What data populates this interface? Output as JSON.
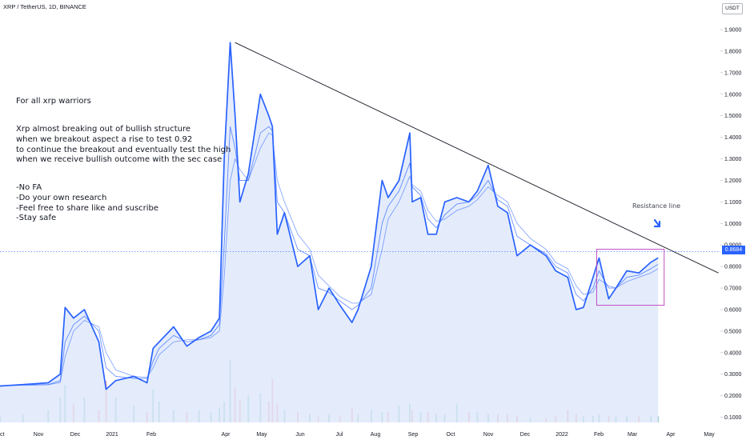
{
  "header": {
    "symbol": "XRP / TetherUS, 1D, BINANCE",
    "currency": "USDT"
  },
  "annotations": {
    "heading": "For all xrp warriors",
    "body": [
      "Xrp almost breaking out of bullish structure",
      "when we breakout aspect a rise to test 0.92",
      "to continue the breakout and eventually test the high",
      "when we receive bullish outcome with the sec case"
    ],
    "bullets": [
      "-No FA",
      "-Do your own research",
      "-Feel free to share like and suscribe",
      "-Stay safe"
    ],
    "resistance_label": "Resistance line"
  },
  "price_label": "0.8684",
  "colors": {
    "price_line": "#2962ff",
    "area_fill": "#dbe6fb",
    "trendline": "#131722",
    "box": "#c04bc2",
    "arrow": "#2962ff",
    "volume_up": "#9ed3c6",
    "volume_down": "#f7b3b3",
    "axis_text": "#131722"
  },
  "chart_data": {
    "type": "line",
    "title": "XRP / TetherUS, 1D, BINANCE",
    "y_tick_labels": [
      "1.9000",
      "1.8000",
      "1.7000",
      "1.6000",
      "1.5000",
      "1.4000",
      "1.3000",
      "1.2000",
      "1.1000",
      "1.0000",
      "0.9000",
      "0.8000",
      "0.7000",
      "0.6000",
      "0.5000",
      "0.4000",
      "0.3000",
      "0.2000",
      "0.1000"
    ],
    "x_tick_labels": [
      "Oct",
      "Nov",
      "Dec",
      "2021",
      "Feb",
      "Apr",
      "May",
      "Jun",
      "Jul",
      "Aug",
      "Sep",
      "Oct",
      "Nov",
      "Dec",
      "2022",
      "Feb",
      "Mar",
      "Apr",
      "May"
    ],
    "ylim": [
      0.06,
      1.98
    ],
    "x": [
      "2020-10-01",
      "2020-10-20",
      "2020-11-10",
      "2020-11-20",
      "2020-11-24",
      "2020-12-01",
      "2020-12-10",
      "2020-12-22",
      "2020-12-28",
      "2021-01-05",
      "2021-01-20",
      "2021-01-31",
      "2021-02-05",
      "2021-02-10",
      "2021-02-22",
      "2021-03-05",
      "2021-03-15",
      "2021-03-25",
      "2021-04-01",
      "2021-04-05",
      "2021-04-10",
      "2021-04-14",
      "2021-04-18",
      "2021-04-25",
      "2021-05-05",
      "2021-05-12",
      "2021-05-15",
      "2021-05-19",
      "2021-05-25",
      "2021-06-05",
      "2021-06-15",
      "2021-06-22",
      "2021-07-01",
      "2021-07-10",
      "2021-07-20",
      "2021-07-25",
      "2021-08-05",
      "2021-08-14",
      "2021-08-19",
      "2021-08-28",
      "2021-09-06",
      "2021-09-08",
      "2021-09-15",
      "2021-09-21",
      "2021-09-28",
      "2021-10-05",
      "2021-10-15",
      "2021-10-25",
      "2021-11-01",
      "2021-11-10",
      "2021-11-18",
      "2021-11-26",
      "2021-12-04",
      "2021-12-15",
      "2021-12-28",
      "2022-01-05",
      "2022-01-15",
      "2022-01-22",
      "2022-01-28",
      "2022-02-05",
      "2022-02-10",
      "2022-02-18",
      "2022-02-24",
      "2022-03-05",
      "2022-03-15",
      "2022-03-25",
      "2022-03-31"
    ],
    "series": [
      {
        "type": "line",
        "values": [
          0.245,
          0.252,
          0.26,
          0.3,
          0.61,
          0.56,
          0.6,
          0.45,
          0.23,
          0.27,
          0.29,
          0.26,
          0.42,
          0.45,
          0.52,
          0.43,
          0.47,
          0.5,
          0.56,
          1.3,
          1.84,
          1.5,
          1.1,
          1.23,
          1.6,
          1.5,
          1.45,
          0.95,
          1.05,
          0.8,
          0.85,
          0.6,
          0.7,
          0.62,
          0.54,
          0.6,
          0.8,
          1.2,
          1.12,
          1.2,
          1.42,
          1.1,
          1.12,
          0.95,
          0.95,
          1.1,
          1.12,
          1.1,
          1.15,
          1.27,
          1.08,
          1.05,
          0.85,
          0.9,
          0.85,
          0.78,
          0.75,
          0.6,
          0.61,
          0.75,
          0.84,
          0.65,
          0.7,
          0.78,
          0.77,
          0.82,
          0.84
        ]
      },
      {
        "type": "line",
        "values": [
          0.246,
          0.25,
          0.252,
          0.27,
          0.45,
          0.53,
          0.57,
          0.5,
          0.33,
          0.29,
          0.28,
          0.28,
          0.36,
          0.42,
          0.48,
          0.45,
          0.46,
          0.48,
          0.53,
          0.9,
          1.45,
          1.35,
          1.2,
          1.2,
          1.42,
          1.45,
          1.43,
          1.1,
          1.05,
          0.88,
          0.85,
          0.7,
          0.68,
          0.64,
          0.6,
          0.62,
          0.7,
          1.0,
          1.08,
          1.15,
          1.28,
          1.17,
          1.13,
          1.02,
          0.98,
          1.04,
          1.09,
          1.1,
          1.13,
          1.2,
          1.11,
          1.08,
          0.94,
          0.9,
          0.86,
          0.8,
          0.77,
          0.67,
          0.64,
          0.7,
          0.78,
          0.7,
          0.7,
          0.75,
          0.76,
          0.79,
          0.81
        ]
      },
      {
        "type": "line",
        "values": [
          0.246,
          0.249,
          0.251,
          0.262,
          0.38,
          0.5,
          0.55,
          0.52,
          0.4,
          0.32,
          0.29,
          0.285,
          0.33,
          0.39,
          0.45,
          0.46,
          0.46,
          0.47,
          0.5,
          0.75,
          1.2,
          1.3,
          1.25,
          1.2,
          1.35,
          1.42,
          1.41,
          1.2,
          1.1,
          0.95,
          0.88,
          0.76,
          0.71,
          0.66,
          0.63,
          0.63,
          0.67,
          0.88,
          1.02,
          1.1,
          1.22,
          1.18,
          1.15,
          1.06,
          1.01,
          1.02,
          1.06,
          1.08,
          1.11,
          1.17,
          1.13,
          1.1,
          1.0,
          0.93,
          0.88,
          0.82,
          0.79,
          0.71,
          0.67,
          0.68,
          0.74,
          0.71,
          0.7,
          0.73,
          0.75,
          0.77,
          0.79
        ]
      }
    ],
    "volume": [
      0.03,
      0.04,
      0.06,
      0.12,
      0.18,
      0.09,
      0.12,
      0.06,
      0.2,
      0.12,
      0.08,
      0.05,
      0.16,
      0.1,
      0.06,
      0.05,
      0.06,
      0.05,
      0.07,
      0.1,
      0.3,
      0.17,
      0.11,
      0.13,
      0.14,
      0.1,
      0.21,
      0.09,
      0.06,
      0.05,
      0.04,
      0.03,
      0.04,
      0.03,
      0.07,
      0.04,
      0.06,
      0.05,
      0.05,
      0.08,
      0.09,
      0.06,
      0.05,
      0.05,
      0.04,
      0.04,
      0.09,
      0.05,
      0.05,
      0.04,
      0.04,
      0.04,
      0.03,
      0.02,
      0.02,
      0.03,
      0.06,
      0.04,
      0.03,
      0.03,
      0.04,
      0.03,
      0.03,
      0.03,
      0.03,
      0.03,
      0.03
    ],
    "trendline": {
      "from": [
        "2021-04-14",
        1.84
      ],
      "to": [
        "2022-05-20",
        0.77
      ]
    },
    "box": {
      "x": [
        "2022-02-08",
        "2022-04-05"
      ],
      "y": [
        0.62,
        0.88
      ]
    },
    "last_price": 0.8684,
    "grid": false
  }
}
